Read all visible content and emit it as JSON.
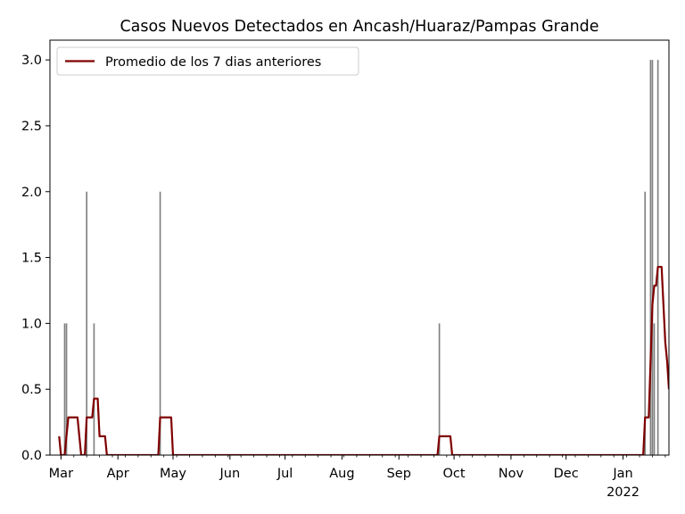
{
  "chart_data": {
    "type": "bar",
    "title": "Casos Nuevos Detectados en Ancash/Huaraz/Pampas Grande",
    "xlabel": "",
    "ylabel": "",
    "xlim": [
      "2021-02-23",
      "2022-01-26"
    ],
    "ylim": [
      0,
      3.15
    ],
    "yticks": [
      "0.0",
      "0.5",
      "1.0",
      "1.5",
      "2.0",
      "2.5",
      "3.0"
    ],
    "xticks": [
      {
        "date": "2021-03-01",
        "label": "Mar",
        "sublabel": ""
      },
      {
        "date": "2021-04-01",
        "label": "Apr",
        "sublabel": ""
      },
      {
        "date": "2021-05-01",
        "label": "May",
        "sublabel": ""
      },
      {
        "date": "2021-06-01",
        "label": "Jun",
        "sublabel": ""
      },
      {
        "date": "2021-07-01",
        "label": "Jul",
        "sublabel": ""
      },
      {
        "date": "2021-08-01",
        "label": "Aug",
        "sublabel": ""
      },
      {
        "date": "2021-09-01",
        "label": "Sep",
        "sublabel": ""
      },
      {
        "date": "2021-10-01",
        "label": "Oct",
        "sublabel": ""
      },
      {
        "date": "2021-11-01",
        "label": "Nov",
        "sublabel": ""
      },
      {
        "date": "2021-12-01",
        "label": "Dec",
        "sublabel": ""
      },
      {
        "date": "2022-01-01",
        "label": "Jan",
        "sublabel": "2022"
      }
    ],
    "grid": false,
    "legend_position": "top-left",
    "bars": {
      "color": "#808080",
      "points": [
        {
          "x": "2021-03-03",
          "y": 1
        },
        {
          "x": "2021-03-04",
          "y": 1
        },
        {
          "x": "2021-03-15",
          "y": 2
        },
        {
          "x": "2021-03-19",
          "y": 1
        },
        {
          "x": "2021-04-24",
          "y": 2
        },
        {
          "x": "2021-09-23",
          "y": 1
        },
        {
          "x": "2022-01-13",
          "y": 2
        },
        {
          "x": "2022-01-16",
          "y": 3
        },
        {
          "x": "2022-01-17",
          "y": 3
        },
        {
          "x": "2022-01-18",
          "y": 1
        },
        {
          "x": "2022-01-20",
          "y": 3
        }
      ]
    },
    "series": [
      {
        "name": "Promedio de los 7 dias anteriores",
        "type": "line",
        "color": "#800000",
        "points": [
          {
            "x": "2021-02-28",
            "y": 0.143
          },
          {
            "x": "2021-03-01",
            "y": 0
          },
          {
            "x": "2021-03-03",
            "y": 0
          },
          {
            "x": "2021-03-04",
            "y": 0.143
          },
          {
            "x": "2021-03-05",
            "y": 0.286
          },
          {
            "x": "2021-03-10",
            "y": 0.286
          },
          {
            "x": "2021-03-11",
            "y": 0.143
          },
          {
            "x": "2021-03-12",
            "y": 0
          },
          {
            "x": "2021-03-14",
            "y": 0
          },
          {
            "x": "2021-03-15",
            "y": 0.286
          },
          {
            "x": "2021-03-18",
            "y": 0.286
          },
          {
            "x": "2021-03-19",
            "y": 0.429
          },
          {
            "x": "2021-03-21",
            "y": 0.429
          },
          {
            "x": "2021-03-22",
            "y": 0.143
          },
          {
            "x": "2021-03-25",
            "y": 0.143
          },
          {
            "x": "2021-03-26",
            "y": 0
          },
          {
            "x": "2021-04-23",
            "y": 0
          },
          {
            "x": "2021-04-24",
            "y": 0.286
          },
          {
            "x": "2021-04-30",
            "y": 0.286
          },
          {
            "x": "2021-05-01",
            "y": 0
          },
          {
            "x": "2021-09-22",
            "y": 0
          },
          {
            "x": "2021-09-23",
            "y": 0.143
          },
          {
            "x": "2021-09-29",
            "y": 0.143
          },
          {
            "x": "2021-09-30",
            "y": 0
          },
          {
            "x": "2022-01-12",
            "y": 0
          },
          {
            "x": "2022-01-13",
            "y": 0.286
          },
          {
            "x": "2022-01-15",
            "y": 0.286
          },
          {
            "x": "2022-01-17",
            "y": 1.143
          },
          {
            "x": "2022-01-18",
            "y": 1.286
          },
          {
            "x": "2022-01-19",
            "y": 1.286
          },
          {
            "x": "2022-01-20",
            "y": 1.429
          },
          {
            "x": "2022-01-22",
            "y": 1.429
          },
          {
            "x": "2022-01-24",
            "y": 0.857
          },
          {
            "x": "2022-01-25",
            "y": 0.714
          },
          {
            "x": "2022-01-26",
            "y": 0.5
          }
        ]
      }
    ]
  }
}
